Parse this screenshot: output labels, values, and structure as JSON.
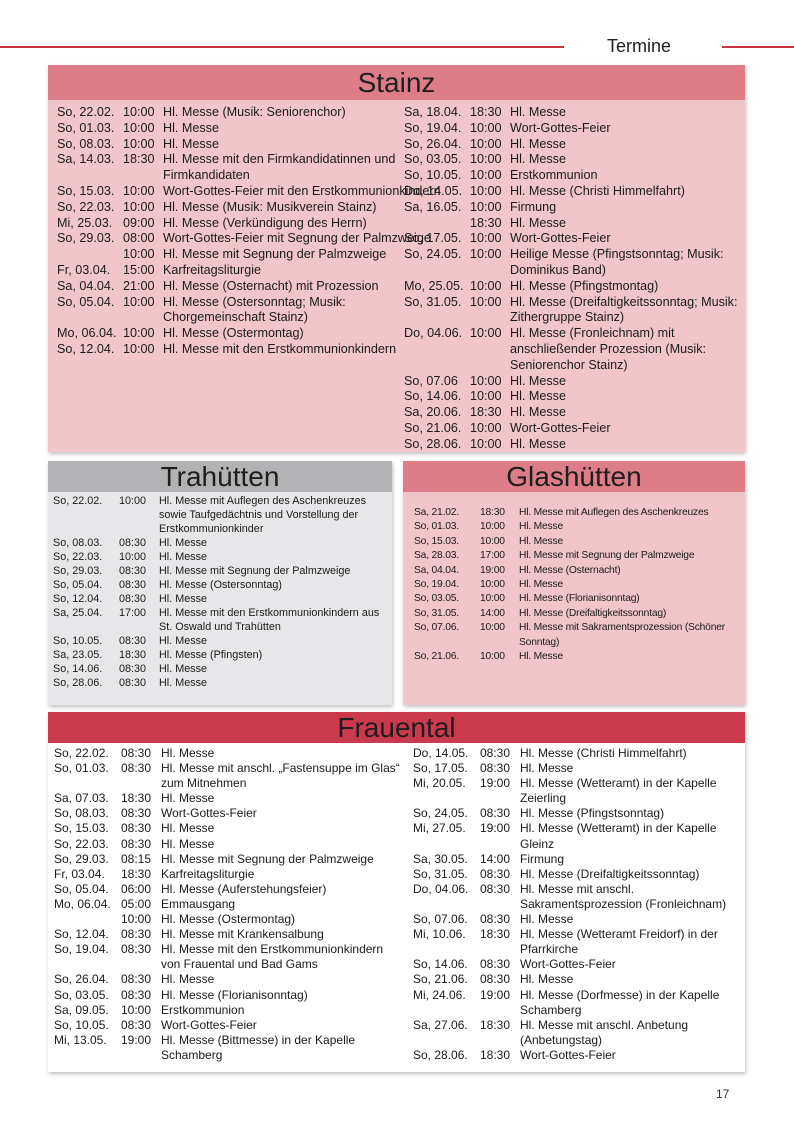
{
  "header": {
    "title": "Termine"
  },
  "sections": {
    "stainz": {
      "title": "Stainz",
      "columns": [
        [
          [
            "So, 22.02.",
            "10:00",
            "Hl. Messe (Musik: Seniorenchor)"
          ],
          [
            "So, 01.03.",
            "10:00",
            "Hl. Messe"
          ],
          [
            "So, 08.03.",
            "10:00",
            "Hl. Messe"
          ],
          [
            "Sa, 14.03.",
            "18:30",
            "Hl. Messe mit den Firmkandidatinnen und Firmkandidaten"
          ],
          [
            "So, 15.03.",
            "10:00",
            "Wort-Gottes-Feier mit den Erstkommunionkindern"
          ],
          [
            "So, 22.03.",
            "10:00",
            "Hl. Messe (Musik: Musikverein Stainz)"
          ],
          [
            "Mi, 25.03.",
            "09:00",
            "Hl. Messe (Verkündigung des Herrn)"
          ],
          [
            "So, 29.03.",
            "08:00",
            "Wort-Gottes-Feier mit Segnung der Palmzweige"
          ],
          [
            null,
            "10:00",
            "Hl. Messe mit Segnung der Palmzweige"
          ],
          [
            "Fr, 03.04.",
            "15:00",
            "Karfreitagsliturgie"
          ],
          [
            "Sa, 04.04.",
            "21:00",
            "Hl. Messe (Osternacht) mit Prozession"
          ],
          [
            "So, 05.04.",
            "10:00",
            "Hl. Messe (Ostersonntag; Musik: Chorgemeinschaft Stainz)"
          ],
          [
            "Mo, 06.04.",
            "10:00",
            "Hl. Messe (Ostermontag)"
          ],
          [
            "So, 12.04.",
            "10:00",
            "Hl. Messe mit den Erstkommunionkindern"
          ]
        ],
        [
          [
            "Sa, 18.04.",
            "18:30",
            "Hl. Messe"
          ],
          [
            "So, 19.04.",
            "10:00",
            "Wort-Gottes-Feier"
          ],
          [
            "So, 26.04.",
            "10:00",
            "Hl. Messe"
          ],
          [
            "So, 03.05.",
            "10:00",
            "Hl. Messe"
          ],
          [
            "So, 10.05.",
            "10:00",
            "Erstkommunion"
          ],
          [
            "Do, 14.05.",
            "10:00",
            "Hl. Messe (Christi Himmelfahrt)"
          ],
          [
            "Sa, 16.05.",
            "10:00",
            "Firmung"
          ],
          [
            null,
            "18:30",
            "Hl. Messe"
          ],
          [
            "So, 17.05.",
            "10:00",
            "Wort-Gottes-Feier"
          ],
          [
            "So, 24.05.",
            "10:00",
            "Heilige Messe (Pfingstsonntag; Musik: Dominikus Band)"
          ],
          [
            "Mo, 25.05.",
            "10:00",
            "Hl. Messe (Pfingstmontag)"
          ],
          [
            "So, 31.05.",
            "10:00",
            "Hl. Messe (Dreifaltigkeitssonntag; Musik: Zithergruppe Stainz)"
          ],
          [
            "Do, 04.06.",
            "10:00",
            "Hl. Messe (Fronleichnam) mit anschließender Prozession (Musik: Seniorenchor Stainz)"
          ],
          [
            "So, 07.06",
            "10:00",
            "Hl. Messe"
          ],
          [
            "So, 14.06.",
            "10:00",
            "Hl. Messe"
          ],
          [
            "Sa, 20.06.",
            "18:30",
            "Hl. Messe"
          ],
          [
            "So, 21.06.",
            "10:00",
            "Wort-Gottes-Feier"
          ],
          [
            "So, 28.06.",
            "10:00",
            "Hl. Messe"
          ]
        ]
      ]
    },
    "trahuetten": {
      "title": "Trahütten",
      "columns": [
        [
          [
            "So, 22.02.",
            "10:00",
            "Hl. Messe mit Auflegen des Aschenkreuzes sowie Taufgedächtnis und Vorstellung der Erstkommunionkinder"
          ],
          [
            "So, 08.03.",
            "08:30",
            "Hl. Messe"
          ],
          [
            "So, 22.03.",
            "10:00",
            "Hl. Messe"
          ],
          [
            "So, 29.03.",
            "08:30",
            "Hl. Messe mit Segnung der Palmzweige"
          ],
          [
            "So, 05.04.",
            "08:30",
            "Hl. Messe (Ostersonntag)"
          ],
          [
            "So, 12.04.",
            "08:30",
            "Hl. Messe"
          ],
          [
            "Sa, 25.04.",
            "17:00",
            "Hl. Messe mit den Erstkommunionkindern aus St. Oswald und Trahütten"
          ],
          [
            "So, 10.05.",
            "08:30",
            "Hl. Messe"
          ],
          [
            "Sa, 23.05.",
            "18:30",
            "Hl. Messe (Pfingsten)"
          ],
          [
            "So, 14.06.",
            "08:30",
            "Hl. Messe"
          ],
          [
            "So, 28.06.",
            "08:30",
            "Hl. Messe"
          ]
        ]
      ]
    },
    "glashuetten": {
      "title": "Glashütten",
      "columns": [
        [
          [
            "Sa, 21.02.",
            "18:30",
            "Hl. Messe mit Auflegen des Aschenkreuzes"
          ],
          [
            "So, 01.03.",
            "10:00",
            "Hl. Messe"
          ],
          [
            "So, 15.03.",
            "10:00",
            "Hl. Messe"
          ],
          [
            "Sa, 28.03.",
            "17:00",
            "Hl. Messe mit Segnung der Palmzweige"
          ],
          [
            "Sa, 04.04.",
            "19:00",
            "Hl. Messe (Osternacht)"
          ],
          [
            "So, 19.04.",
            "10:00",
            "Hl. Messe"
          ],
          [
            "So, 03.05.",
            "10:00",
            "Hl. Messe (Florianisonntag)"
          ],
          [
            "So, 31.05.",
            "14:00",
            "Hl. Messe (Dreifaltigkeitssonntag)"
          ],
          [
            "So, 07.06.",
            "10:00",
            "Hl. Messe mit Sakramentsprozession (Schöner Sonntag)"
          ],
          [
            "So, 21.06.",
            "10:00",
            "Hl. Messe"
          ]
        ]
      ]
    },
    "frauental": {
      "title": "Frauental",
      "columns": [
        [
          [
            "So, 22.02.",
            "08:30",
            "Hl. Messe"
          ],
          [
            "So, 01.03.",
            "08:30",
            "Hl. Messe mit anschl. „Fastensuppe im Glas“ zum Mitnehmen"
          ],
          [
            "Sa, 07.03.",
            "18:30",
            "Hl. Messe"
          ],
          [
            "So, 08.03.",
            "08:30",
            "Wort-Gottes-Feier"
          ],
          [
            "So, 15.03.",
            "08:30",
            "Hl. Messe"
          ],
          [
            "So, 22.03.",
            "08:30",
            "Hl. Messe"
          ],
          [
            "So, 29.03.",
            "08:15",
            "Hl. Messe mit Segnung der Palmzweige"
          ],
          [
            "Fr, 03.04.",
            "18:30",
            "Karfreitagsliturgie"
          ],
          [
            "So, 05.04.",
            "06:00",
            "Hl. Messe (Auferstehungsfeier)"
          ],
          [
            "Mo, 06.04.",
            "05:00",
            "Emmausgang"
          ],
          [
            null,
            "10:00",
            "Hl. Messe (Ostermontag)"
          ],
          [
            "So, 12.04.",
            "08:30",
            "Hl. Messe mit Krankensalbung"
          ],
          [
            "So, 19.04.",
            "08:30",
            "Hl. Messe mit den Erstkommunionkindern von Frauental und Bad Gams"
          ],
          [
            "So, 26.04.",
            "08:30",
            "Hl. Messe"
          ],
          [
            "So, 03.05.",
            "08:30",
            "Hl. Messe (Florianisonntag)"
          ],
          [
            "Sa, 09.05.",
            "10:00",
            "Erstkommunion"
          ],
          [
            "So, 10.05.",
            "08:30",
            "Wort-Gottes-Feier"
          ],
          [
            "Mi, 13.05.",
            "19:00",
            "Hl. Messe (Bittmesse) in der Kapelle Schamberg"
          ]
        ],
        [
          [
            "Do, 14.05.",
            "08:30",
            "Hl. Messe (Christi Himmelfahrt)"
          ],
          [
            "So, 17.05.",
            "08:30",
            "Hl. Messe"
          ],
          [
            "Mi, 20.05.",
            "19:00",
            "Hl. Messe (Wetteramt) in der Kapelle Zeierling"
          ],
          [
            "So, 24.05.",
            "08:30",
            "Hl. Messe (Pfingstsonntag)"
          ],
          [
            "Mi, 27.05.",
            "19:00",
            "Hl. Messe (Wetteramt) in der Kapelle Gleinz"
          ],
          [
            "Sa, 30.05.",
            "14:00",
            "Firmung"
          ],
          [
            "So, 31.05.",
            "08:30",
            "Hl. Messe (Dreifaltigkeitssonntag)"
          ],
          [
            "Do, 04.06.",
            "08:30",
            "Hl. Messe mit anschl. Sakramentsprozession (Fronleichnam)"
          ],
          [
            "So, 07.06.",
            "08:30",
            "Hl. Messe"
          ],
          [
            "Mi, 10.06.",
            "18:30",
            "Hl. Messe (Wetteramt Freidorf) in der Pfarrkirche"
          ],
          [
            "So, 14.06.",
            "08:30",
            "Wort-Gottes-Feier"
          ],
          [
            "So, 21.06.",
            "08:30",
            "Hl. Messe"
          ],
          [
            "Mi, 24.06.",
            "19:00",
            "Hl. Messe (Dorfmesse) in der Kapelle Schamberg"
          ],
          [
            "Sa, 27.06.",
            "18:30",
            "Hl. Messe mit anschl. Anbetung (Anbetungstag)"
          ],
          [
            "So, 28.06.",
            "18:30",
            "Wort-Gottes-Feier"
          ]
        ]
      ]
    }
  },
  "footer": {
    "page_number": "17"
  }
}
